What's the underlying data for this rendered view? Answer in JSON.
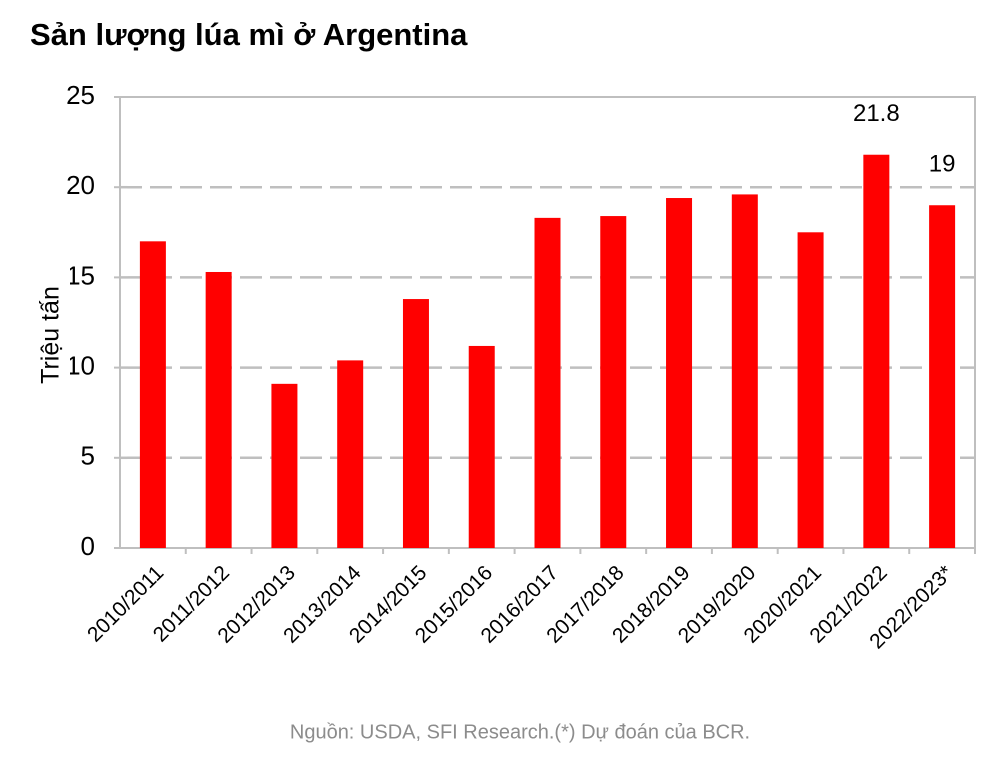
{
  "chart_data": {
    "type": "bar",
    "title": "Sản lượng lúa mì ở Argentina",
    "y_label": "Triệu tấn",
    "source": "Nguồn: USDA, SFI Research.(*) Dự đoán của BCR.",
    "categories": [
      "2010/2011",
      "2011/2012",
      "2012/2013",
      "2013/2014",
      "2014/2015",
      "2015/2016",
      "2016/2017",
      "2017/2018",
      "2018/2019",
      "2019/2020",
      "2020/2021",
      "2021/2022",
      "2022/2023*"
    ],
    "values": [
      17.0,
      15.3,
      9.1,
      10.4,
      13.8,
      11.2,
      18.3,
      18.4,
      19.4,
      19.6,
      17.5,
      21.8,
      19
    ],
    "value_labels": [
      null,
      null,
      null,
      null,
      null,
      null,
      null,
      null,
      null,
      null,
      null,
      "21.8",
      "19"
    ],
    "color": "#ff0000",
    "ylim": [
      0,
      25
    ],
    "yticks": [
      0,
      5,
      10,
      15,
      20,
      25
    ],
    "grid": true
  }
}
